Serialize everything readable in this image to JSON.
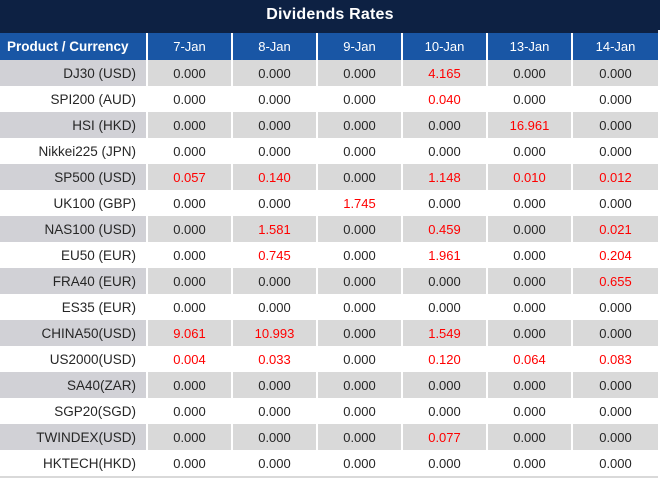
{
  "title": "Dividends Rates",
  "colors": {
    "title_bg": "#0d2143",
    "header_bg": "#1956a5",
    "row_gray": "#d9d9d9",
    "product_gray": "#d1d1d6",
    "red": "#ff0000",
    "text": "#262626"
  },
  "table": {
    "header": [
      "Product / Currency",
      "7-Jan",
      "8-Jan",
      "9-Jan",
      "10-Jan",
      "13-Jan",
      "14-Jan"
    ],
    "rows": [
      {
        "product": "DJ30 (USD)",
        "values": [
          "0.000",
          "0.000",
          "0.000",
          "4.165",
          "0.000",
          "0.000"
        ],
        "red": [
          3
        ]
      },
      {
        "product": "SPI200 (AUD)",
        "values": [
          "0.000",
          "0.000",
          "0.000",
          "0.040",
          "0.000",
          "0.000"
        ],
        "red": [
          3
        ]
      },
      {
        "product": "HSI (HKD)",
        "values": [
          "0.000",
          "0.000",
          "0.000",
          "0.000",
          "16.961",
          "0.000"
        ],
        "red": [
          4
        ]
      },
      {
        "product": "Nikkei225 (JPN)",
        "values": [
          "0.000",
          "0.000",
          "0.000",
          "0.000",
          "0.000",
          "0.000"
        ],
        "red": []
      },
      {
        "product": "SP500 (USD)",
        "values": [
          "0.057",
          "0.140",
          "0.000",
          "1.148",
          "0.010",
          "0.012"
        ],
        "red": [
          0,
          1,
          3,
          4,
          5
        ]
      },
      {
        "product": "UK100 (GBP)",
        "values": [
          "0.000",
          "0.000",
          "1.745",
          "0.000",
          "0.000",
          "0.000"
        ],
        "red": [
          2
        ]
      },
      {
        "product": "NAS100 (USD)",
        "values": [
          "0.000",
          "1.581",
          "0.000",
          "0.459",
          "0.000",
          "0.021"
        ],
        "red": [
          1,
          3,
          5
        ]
      },
      {
        "product": "EU50 (EUR)",
        "values": [
          "0.000",
          "0.745",
          "0.000",
          "1.961",
          "0.000",
          "0.204"
        ],
        "red": [
          1,
          3,
          5
        ]
      },
      {
        "product": "FRA40 (EUR)",
        "values": [
          "0.000",
          "0.000",
          "0.000",
          "0.000",
          "0.000",
          "0.655"
        ],
        "red": [
          5
        ]
      },
      {
        "product": "ES35 (EUR)",
        "values": [
          "0.000",
          "0.000",
          "0.000",
          "0.000",
          "0.000",
          "0.000"
        ],
        "red": []
      },
      {
        "product": "CHINA50(USD)",
        "values": [
          "9.061",
          "10.993",
          "0.000",
          "1.549",
          "0.000",
          "0.000"
        ],
        "red": [
          0,
          1,
          3
        ]
      },
      {
        "product": "US2000(USD)",
        "values": [
          "0.004",
          "0.033",
          "0.000",
          "0.120",
          "0.064",
          "0.083"
        ],
        "red": [
          0,
          1,
          3,
          4,
          5
        ]
      },
      {
        "product": "SA40(ZAR)",
        "values": [
          "0.000",
          "0.000",
          "0.000",
          "0.000",
          "0.000",
          "0.000"
        ],
        "red": []
      },
      {
        "product": "SGP20(SGD)",
        "values": [
          "0.000",
          "0.000",
          "0.000",
          "0.000",
          "0.000",
          "0.000"
        ],
        "red": []
      },
      {
        "product": "TWINDEX(USD)",
        "values": [
          "0.000",
          "0.000",
          "0.000",
          "0.077",
          "0.000",
          "0.000"
        ],
        "red": [
          3
        ]
      },
      {
        "product": "HKTECH(HKD)",
        "values": [
          "0.000",
          "0.000",
          "0.000",
          "0.000",
          "0.000",
          "0.000"
        ],
        "red": []
      }
    ]
  }
}
